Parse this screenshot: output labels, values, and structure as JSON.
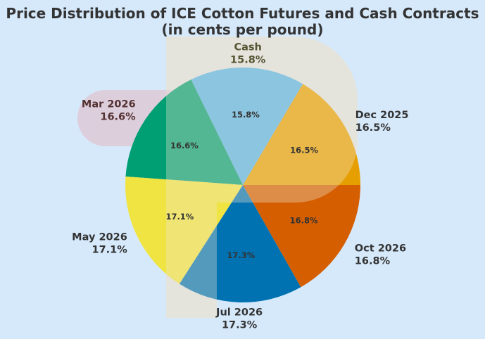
{
  "chart_data": {
    "type": "pie",
    "title_line1": "Price Distribution of ICE Cotton Futures and Cash Contracts",
    "title_line2": "(in cents per pound)",
    "categories": [
      "Dec 2025",
      "Cash",
      "Mar 2026",
      "May 2026",
      "Jul 2026",
      "Oct 2026"
    ],
    "values": [
      16.5,
      15.8,
      16.6,
      17.1,
      17.3,
      16.8
    ],
    "outer_values": [
      "16.5%",
      "15.8%",
      "16.6%",
      "17.1%",
      "17.3%",
      "16.8%"
    ],
    "inner_labels": [
      "16.5%",
      "15.8%",
      "16.6%",
      "17.1%",
      "17.3%",
      "16.8%"
    ],
    "colors": [
      "#e69f00",
      "#56b4e9",
      "#009e73",
      "#f0e442",
      "#0072b2",
      "#d55e00"
    ],
    "start_angle_deg": 0,
    "direction": "counterclockwise",
    "legend": "none",
    "background": "#d6e9fb"
  }
}
